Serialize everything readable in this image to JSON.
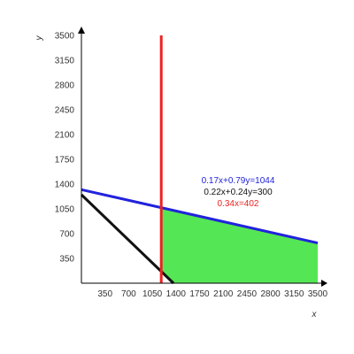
{
  "chart_data": {
    "type": "line",
    "xlabel": "x",
    "ylabel": "y",
    "xlim": [
      0,
      3500
    ],
    "ylim": [
      0,
      3500
    ],
    "x_ticks": [
      350,
      700,
      1050,
      1400,
      1750,
      2100,
      2450,
      2800,
      3150,
      3500
    ],
    "x_tick_labels": [
      "350",
      "700",
      "1050",
      "1400",
      "1750",
      "2100",
      "2450",
      "2800",
      "3150",
      "3500"
    ],
    "y_ticks": [
      350,
      700,
      1050,
      1400,
      1750,
      2100,
      2450,
      2800,
      3150,
      3500
    ],
    "y_tick_labels": [
      "350",
      "700",
      "1050",
      "1400",
      "1750",
      "2100",
      "2450",
      "2800",
      "3150",
      "3500"
    ],
    "grid": false,
    "series": [
      {
        "label": "0.17x+0.79y=1044",
        "a": 0.17,
        "b": 0.79,
        "c": 1044,
        "color": "#2222dd"
      },
      {
        "label": "0.22x+0.24y=300",
        "a": 0.22,
        "b": 0.24,
        "c": 300,
        "color": "#111111"
      },
      {
        "label": "0.34x=402",
        "a": 0.34,
        "b": 0,
        "c": 402,
        "color": "#ee2222"
      }
    ],
    "feasible_region_color": "#55e655"
  }
}
